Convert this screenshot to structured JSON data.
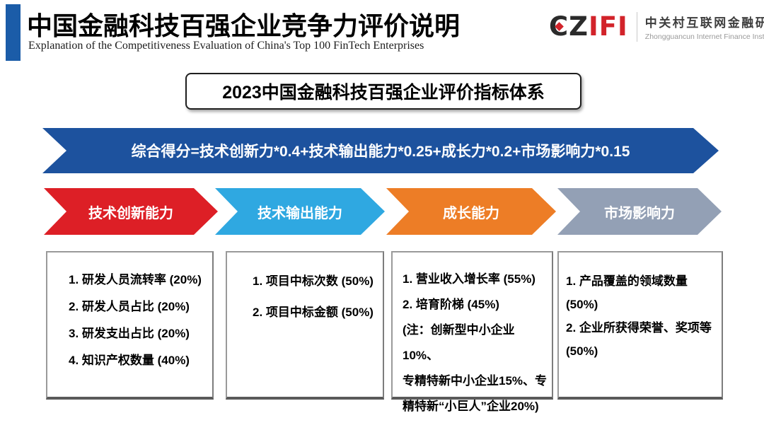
{
  "header": {
    "title": "中国金融科技百强企业竞争力评价说明",
    "subtitle": "Explanation of the Competitiveness Evaluation of China's Top 100 FinTech Enterprises",
    "accent_color": "#1B5CA8",
    "logo": {
      "mark_cz": "CZ",
      "mark_ifi": "IFI",
      "mark_color_dark": "#2B2B2B",
      "mark_color_red": "#D2232A",
      "org_cn": "中关村互联网金融研究院",
      "org_en": "Zhongguancun Internet Finance Institute"
    }
  },
  "title_box": {
    "label": "2023中国金融科技百强企业评价指标体系"
  },
  "formula_banner": {
    "text": "综合得分=技术创新力*0.4+技术输出能力*0.25+成长力*0.2+市场影响力*0.15",
    "color": "#1D529E"
  },
  "categories": [
    {
      "label": "技术创新能力",
      "color": "#DD1F26"
    },
    {
      "label": "技术输出能力",
      "color": "#2FA8E1"
    },
    {
      "label": "成长能力",
      "color": "#ED7D26"
    },
    {
      "label": "市场影响力",
      "color": "#93A0B5"
    }
  ],
  "detail_boxes": [
    {
      "items": [
        "1. 研发人员流转率 (20%)",
        "2. 研发人员占比 (20%)",
        "3. 研发支出占比 (20%)",
        "4. 知识产权数量 (40%)"
      ]
    },
    {
      "items": [
        "1. 项目中标次数 (50%)",
        "2. 项目中标金额 (50%)"
      ]
    },
    {
      "items": [
        "1. 营业收入增长率 (55%)",
        "2. 培育阶梯 (45%)",
        "(注：创新型中小企业10%、",
        "专精特新中小企业15%、专",
        "精特新“小巨人”企业20%)"
      ]
    },
    {
      "items": [
        "1. 产品覆盖的领域数量 (50%)",
        "2. 企业所获得荣誉、奖项等",
        "(50%)"
      ]
    }
  ]
}
